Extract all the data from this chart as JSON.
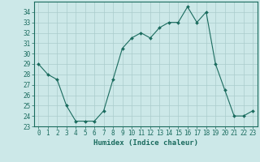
{
  "x": [
    0,
    1,
    2,
    3,
    4,
    5,
    6,
    7,
    8,
    9,
    10,
    11,
    12,
    13,
    14,
    15,
    16,
    17,
    18,
    19,
    20,
    21,
    22,
    23
  ],
  "y": [
    29,
    28,
    27.5,
    25,
    23.5,
    23.5,
    23.5,
    24.5,
    27.5,
    30.5,
    31.5,
    32,
    31.5,
    32.5,
    33,
    33,
    34.5,
    33,
    34,
    29,
    26.5,
    24,
    24,
    24.5
  ],
  "line_color": "#1a6b5e",
  "marker_color": "#1a6b5e",
  "bg_color": "#cce8e8",
  "grid_color": "#aacccc",
  "xlabel": "Humidex (Indice chaleur)",
  "ylim": [
    23,
    35
  ],
  "xlim": [
    -0.5,
    23.5
  ],
  "yticks": [
    23,
    24,
    25,
    26,
    27,
    28,
    29,
    30,
    31,
    32,
    33,
    34
  ],
  "xticks": [
    0,
    1,
    2,
    3,
    4,
    5,
    6,
    7,
    8,
    9,
    10,
    11,
    12,
    13,
    14,
    15,
    16,
    17,
    18,
    19,
    20,
    21,
    22,
    23
  ],
  "axis_color": "#1a6b5e",
  "label_fontsize": 6.5,
  "tick_fontsize": 5.5
}
